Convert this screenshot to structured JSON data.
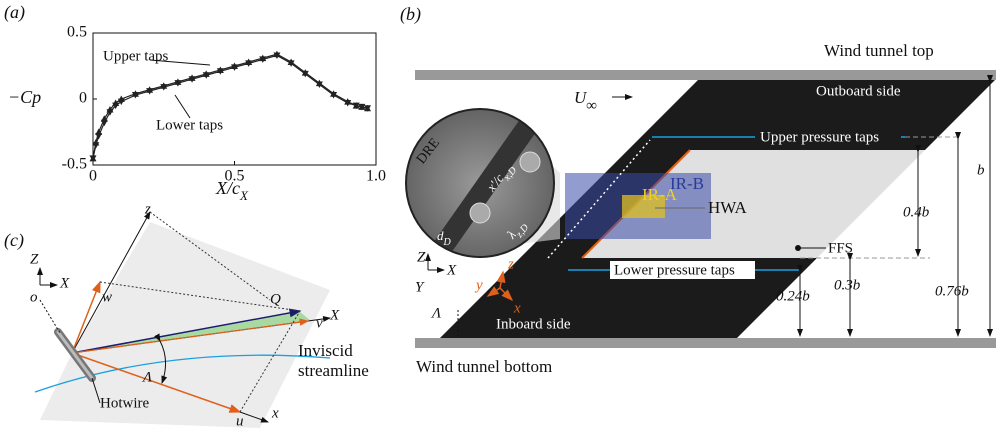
{
  "chart_data": {
    "type": "line",
    "label": "(a)",
    "ylabel": "−Cp",
    "xlabel": "X/c",
    "xlabel_sub": "X",
    "x": [
      0,
      0.01,
      0.02,
      0.04,
      0.06,
      0.08,
      0.1,
      0.15,
      0.2,
      0.25,
      0.3,
      0.35,
      0.4,
      0.45,
      0.5,
      0.55,
      0.6,
      0.65,
      0.7,
      0.75,
      0.8,
      0.85,
      0.9,
      0.93,
      0.95,
      0.97
    ],
    "series": [
      {
        "name": "Upper taps",
        "color": "#222",
        "values": [
          -0.45,
          -0.33,
          -0.25,
          -0.15,
          -0.08,
          -0.03,
          0.0,
          0.04,
          0.07,
          0.1,
          0.13,
          0.16,
          0.19,
          0.22,
          0.25,
          0.28,
          0.31,
          0.34,
          0.28,
          0.2,
          0.12,
          0.04,
          -0.02,
          -0.05,
          -0.06,
          -0.07
        ]
      },
      {
        "name": "Lower taps",
        "color": "#222",
        "values": [
          -0.45,
          -0.35,
          -0.28,
          -0.18,
          -0.1,
          -0.05,
          -0.02,
          0.03,
          0.06,
          0.09,
          0.12,
          0.15,
          0.18,
          0.21,
          0.24,
          0.27,
          0.3,
          0.33,
          0.27,
          0.19,
          0.11,
          0.03,
          -0.03,
          -0.05,
          -0.06,
          -0.07
        ]
      }
    ],
    "xlim": [
      0,
      1
    ],
    "xticks": [
      0,
      0.5,
      {
        "value": 1,
        "label": "1.0"
      }
    ],
    "ylim": [
      -0.5,
      0.5
    ],
    "yticks": [
      -0.5,
      0,
      0.5
    ]
  },
  "panel_b": {
    "label": "(b)",
    "top": "Wind tunnel top",
    "bottom": "Wind tunnel bottom",
    "outboard": "Outboard side",
    "inboard": "Inboard side",
    "upper_taps": "Upper pressure taps",
    "lower_taps": "Lower pressure taps",
    "ir_b": "IR-B",
    "ir_a": "IR-A",
    "hwa": "HWA",
    "ffs": "FFS",
    "u": "U",
    "u_sub": "∞",
    "dre": "DRE",
    "xc": "x′/c",
    "xc_sub": "x,D",
    "d": "d",
    "d_sub": "D",
    "lam": "λ",
    "lam_sub": "z,D",
    "Z": "Z",
    "X": "X",
    "Y": "Y",
    "sweep": "Λ",
    "z": "z",
    "y": "y",
    "x": "x",
    "dim_04b": "0.4b",
    "dim_b": "b",
    "dim_076b": "0.76b",
    "dim_024b": "0.24b",
    "dim_03b": "0.3b"
  },
  "panel_c": {
    "label": "(c)",
    "z": "z",
    "Z": "Z",
    "X0": "X",
    "o": "o",
    "w": "w",
    "Q": "Q",
    "v": "v",
    "X": "X",
    "sweep": "Λ",
    "hotwire": "Hotwire",
    "u": "u",
    "x": "x",
    "stream1": "Inviscid",
    "stream2": "streamline"
  }
}
